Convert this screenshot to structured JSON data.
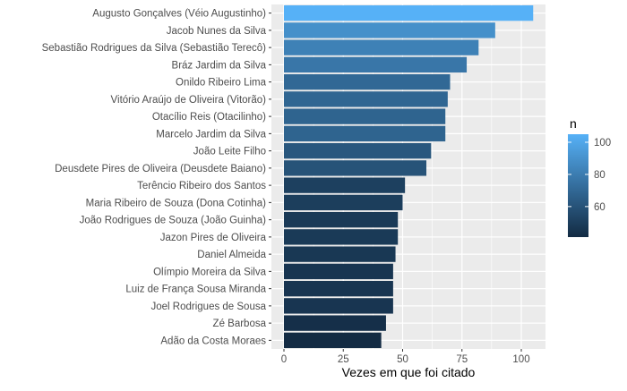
{
  "chart_data": {
    "type": "bar",
    "orientation": "horizontal",
    "title": "",
    "xlabel": "Vezes em que foi citado",
    "ylabel": "",
    "xlim": [
      0,
      110
    ],
    "xticks": [
      0,
      25,
      50,
      75,
      100
    ],
    "grid": true,
    "categories": [
      "Augusto Gonçalves (Véio Augustinho)",
      "Jacob Nunes da Silva",
      "Sebastião Rodrigues da Silva (Sebastião Terecô)",
      "Bráz Jardim da Silva",
      "Onildo Ribeiro Lima",
      "Vitório Araújo de Oliveira (Vitorão)",
      "Otacílio Reis (Otacilinho)",
      "Marcelo Jardim da Silva",
      "João Leite Filho",
      "Deusdete Pires de Oliveira (Deusdete Baiano)",
      "Terêncio Ribeiro dos Santos",
      "Maria Ribeiro de Souza (Dona Cotinha)",
      "João Rodrigues de Souza (João Guinha)",
      "Jazon Pires de Oliveira",
      "Daniel Almeida",
      "Olímpio Moreira da Silva",
      "Luiz de França Sousa Miranda",
      "Joel Rodrigues de Sousa",
      "Zé Barbosa",
      "Adão da Costa Moraes"
    ],
    "values": [
      105,
      89,
      82,
      77,
      70,
      69,
      68,
      68,
      62,
      60,
      51,
      50,
      48,
      48,
      47,
      46,
      46,
      46,
      43,
      41
    ],
    "legend": {
      "title": "n",
      "position": "right",
      "ticks": [
        60,
        80,
        100
      ],
      "range": [
        41,
        105
      ],
      "low_color": "#132B43",
      "high_color": "#56B1F7"
    },
    "panel_color": "#EBEBEB",
    "grid_color": "#FFFFFF"
  }
}
